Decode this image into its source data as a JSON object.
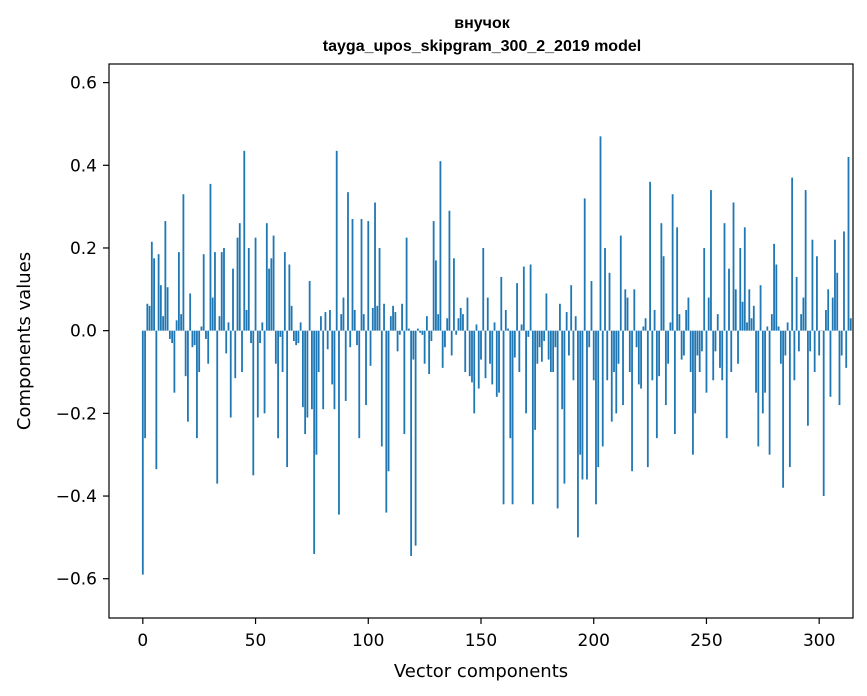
{
  "chart_data": {
    "type": "bar",
    "title": "внучок",
    "subtitle": "tayga_upos_skipgram_300_2_2019 model",
    "xlabel": "Vector components",
    "ylabel": "Components values",
    "xlim": [
      -15,
      315
    ],
    "ylim": [
      -0.695,
      0.645
    ],
    "xticks": [
      0,
      50,
      100,
      150,
      200,
      250,
      300
    ],
    "xtick_labels": [
      "0",
      "50",
      "100",
      "150",
      "200",
      "250",
      "300"
    ],
    "yticks": [
      -0.6,
      -0.4,
      -0.2,
      0.0,
      0.2,
      0.4,
      0.6
    ],
    "ytick_labels": [
      "−0.6",
      "−0.4",
      "−0.2",
      "0.0",
      "0.2",
      "0.4",
      "0.6"
    ],
    "grid": false,
    "bar_color": "#1f77b4",
    "x_start": 0,
    "values": [
      -0.59,
      -0.26,
      0.065,
      0.06,
      0.215,
      0.175,
      -0.335,
      0.185,
      0.11,
      0.035,
      0.265,
      0.105,
      -0.02,
      -0.03,
      -0.15,
      0.025,
      0.19,
      0.04,
      0.33,
      -0.11,
      -0.22,
      0.09,
      -0.04,
      -0.035,
      -0.26,
      -0.1,
      0.01,
      0.185,
      -0.02,
      -0.08,
      0.355,
      0.08,
      0.19,
      -0.37,
      0.035,
      0.19,
      0.2,
      -0.055,
      0.02,
      -0.21,
      0.15,
      -0.115,
      0.225,
      0.26,
      -0.1,
      0.435,
      0.05,
      0.2,
      -0.03,
      -0.35,
      0.225,
      -0.21,
      -0.03,
      0.02,
      -0.2,
      0.26,
      0.15,
      0.175,
      0.23,
      -0.08,
      -0.26,
      -0.015,
      -0.1,
      0.19,
      -0.33,
      0.16,
      0.06,
      -0.025,
      -0.035,
      -0.03,
      0.02,
      -0.185,
      -0.25,
      -0.21,
      0.12,
      -0.19,
      -0.54,
      -0.3,
      -0.1,
      0.035,
      -0.19,
      0.045,
      -0.045,
      0.05,
      -0.13,
      -0.19,
      0.435,
      -0.445,
      0.04,
      0.08,
      -0.17,
      0.335,
      -0.04,
      0.27,
      0.05,
      -0.035,
      -0.26,
      0.27,
      0.04,
      -0.18,
      0.265,
      -0.085,
      0.055,
      0.31,
      0.06,
      0.2,
      -0.28,
      0.065,
      -0.44,
      -0.34,
      0.035,
      0.06,
      0.045,
      -0.05,
      -0.01,
      0.065,
      -0.25,
      0.225,
      0.005,
      -0.545,
      -0.07,
      -0.52,
      0.005,
      -0.005,
      -0.01,
      -0.08,
      0.035,
      -0.105,
      -0.025,
      0.265,
      0.17,
      0.04,
      0.41,
      -0.09,
      -0.04,
      0.03,
      0.29,
      -0.06,
      0.175,
      -0.01,
      0.03,
      0.055,
      0.04,
      -0.1,
      0.08,
      -0.11,
      -0.125,
      -0.2,
      0.015,
      -0.14,
      -0.07,
      0.2,
      -0.115,
      0.08,
      -0.08,
      -0.13,
      0.02,
      -0.16,
      -0.15,
      0.13,
      -0.42,
      0.05,
      0.005,
      -0.26,
      -0.42,
      -0.065,
      0.115,
      -0.1,
      0.015,
      0.155,
      -0.2,
      -0.015,
      0.16,
      -0.42,
      -0.24,
      -0.08,
      -0.04,
      -0.075,
      -0.025,
      0.09,
      -0.07,
      -0.1,
      -0.1,
      -0.04,
      -0.43,
      0.065,
      -0.19,
      -0.37,
      0.045,
      -0.06,
      0.11,
      -0.12,
      0.035,
      -0.5,
      -0.3,
      -0.36,
      0.32,
      -0.36,
      -0.04,
      0.12,
      -0.12,
      -0.42,
      -0.33,
      0.47,
      -0.28,
      0.2,
      -0.12,
      0.14,
      -0.22,
      -0.1,
      -0.2,
      -0.08,
      0.23,
      -0.18,
      0.1,
      0.08,
      -0.1,
      -0.34,
      0.1,
      -0.04,
      -0.13,
      -0.14,
      0.01,
      0.03,
      -0.33,
      0.36,
      -0.12,
      0.05,
      -0.26,
      -0.11,
      0.26,
      0.18,
      -0.18,
      -0.08,
      0.02,
      0.33,
      -0.25,
      0.25,
      0.04,
      -0.07,
      -0.06,
      0.05,
      0.08,
      -0.1,
      -0.3,
      -0.2,
      -0.06,
      -0.1,
      -0.05,
      0.2,
      -0.15,
      0.08,
      0.34,
      -0.12,
      -0.05,
      0.04,
      -0.09,
      -0.12,
      0.26,
      -0.26,
      0.15,
      -0.1,
      0.31,
      0.1,
      -0.08,
      0.2,
      0.07,
      0.25,
      0.02,
      0.1,
      0.03,
      0.06,
      -0.15,
      -0.28,
      0.11,
      -0.2,
      -0.15,
      0.01,
      -0.3,
      0.04,
      0.21,
      0.16,
      0.01,
      -0.08,
      -0.38,
      -0.06,
      0.02,
      -0.33,
      0.37,
      -0.12,
      0.13,
      -0.05,
      0.04,
      0.08,
      0.34,
      -0.23,
      -0.05,
      0.22,
      -0.1,
      0.18,
      -0.06,
      0.0,
      -0.4,
      0.05,
      0.1,
      -0.16,
      0.08,
      0.22,
      0.14,
      -0.18,
      -0.06,
      0.24,
      -0.09,
      0.42,
      0.03
    ]
  }
}
